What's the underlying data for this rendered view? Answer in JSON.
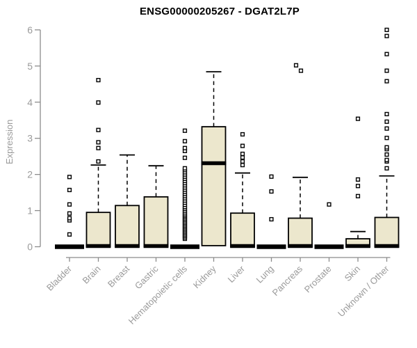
{
  "chart_data": {
    "type": "boxplot",
    "title": "ENSG00000205267 - DGAT2L7P",
    "ylabel": "Expression",
    "xlabel": "",
    "ylim": [
      0,
      6
    ],
    "yticks": [
      0,
      1,
      2,
      3,
      4,
      5,
      6
    ],
    "grid": false,
    "legend": "none",
    "box_fill": "#ece7cd",
    "box_stroke": "#000000",
    "axis_color": "#8c8c8c",
    "label_color": "#9a9a9a",
    "title_color": "#000000",
    "categories": [
      "Bladder",
      "Brain",
      "Breast",
      "Gastric",
      "Hematopoietic cells",
      "Kidney",
      "Liver",
      "Lung",
      "Pancreas",
      "Prostate",
      "Skin",
      "Unknown / Other"
    ],
    "series": [
      {
        "name": "Bladder",
        "collapsed": true,
        "median": 0,
        "q1": 0,
        "q3": 0,
        "whisker_low": 0,
        "whisker_high": 0,
        "outliers": [
          0.34,
          0.73,
          0.79,
          0.92,
          1.17,
          1.57,
          1.93
        ]
      },
      {
        "name": "Brain",
        "collapsed": false,
        "median": 0.02,
        "q1": 0,
        "q3": 0.95,
        "whisker_low": 0,
        "whisker_high": 2.26,
        "outliers": [
          2.36,
          2.73,
          2.89,
          3.23,
          3.99,
          4.61
        ]
      },
      {
        "name": "Breast",
        "collapsed": false,
        "median": 0.02,
        "q1": 0,
        "q3": 1.14,
        "whisker_low": 0,
        "whisker_high": 2.54,
        "outliers": []
      },
      {
        "name": "Gastric",
        "collapsed": false,
        "median": 0.02,
        "q1": 0,
        "q3": 1.38,
        "whisker_low": 0,
        "whisker_high": 2.24,
        "outliers": []
      },
      {
        "name": "Hematopoietic cells",
        "collapsed": true,
        "median": 0,
        "q1": 0,
        "q3": 0,
        "whisker_low": 0,
        "whisker_high": 0,
        "outliers": [
          0.22,
          0.26,
          0.3,
          0.34,
          0.38,
          0.42,
          0.46,
          0.5,
          0.54,
          0.58,
          0.62,
          0.66,
          0.7,
          0.74,
          0.78,
          0.82,
          0.86,
          0.9,
          0.95,
          1.0,
          1.05,
          1.1,
          1.16,
          1.22,
          1.28,
          1.34,
          1.4,
          1.46,
          1.52,
          1.58,
          1.64,
          1.7,
          1.76,
          1.82,
          1.88,
          1.94,
          2.0,
          2.06,
          2.12,
          2.17,
          2.46,
          2.65,
          2.73,
          2.92,
          3.21
        ]
      },
      {
        "name": "Kidney",
        "collapsed": false,
        "median": 2.31,
        "q1": 0.03,
        "q3": 3.32,
        "whisker_low": 0.03,
        "whisker_high": 4.84,
        "outliers": []
      },
      {
        "name": "Liver",
        "collapsed": false,
        "median": 0.02,
        "q1": 0,
        "q3": 0.93,
        "whisker_low": 0,
        "whisker_high": 2.04,
        "outliers": [
          2.26,
          2.36,
          2.47,
          2.57,
          2.79,
          3.11
        ]
      },
      {
        "name": "Lung",
        "collapsed": true,
        "median": 0,
        "q1": 0,
        "q3": 0,
        "whisker_low": 0,
        "whisker_high": 0,
        "outliers": [
          0.76,
          1.53,
          1.94
        ]
      },
      {
        "name": "Pancreas",
        "collapsed": false,
        "median": 0.02,
        "q1": 0,
        "q3": 0.79,
        "whisker_low": 0,
        "whisker_high": 1.92,
        "outliers": [
          4.87,
          5.02
        ],
        "outlier_dx": [
          1,
          -6
        ]
      },
      {
        "name": "Prostate",
        "collapsed": true,
        "median": 0,
        "q1": 0,
        "q3": 0,
        "whisker_low": 0,
        "whisker_high": 0,
        "outliers": [
          1.17
        ]
      },
      {
        "name": "Skin",
        "collapsed": false,
        "median": 0.02,
        "q1": 0,
        "q3": 0.22,
        "whisker_low": 0,
        "whisker_high": 0.42,
        "outliers": [
          1.4,
          1.68,
          1.86,
          3.54
        ]
      },
      {
        "name": "Unknown / Other",
        "collapsed": false,
        "median": 0.02,
        "q1": 0,
        "q3": 0.81,
        "whisker_low": 0,
        "whisker_high": 1.96,
        "outliers": [
          2.17,
          2.36,
          2.4,
          2.55,
          2.7,
          2.75,
          3.01,
          3.27,
          3.46,
          3.67,
          4.58,
          4.87,
          5.33,
          5.83,
          6.0
        ]
      }
    ]
  }
}
